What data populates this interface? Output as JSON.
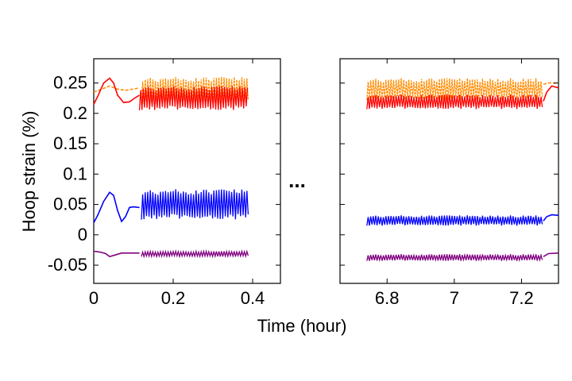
{
  "chart_data": {
    "type": "line",
    "title": "",
    "xlabel": "Time (hour)",
    "ylabel": "Hoop strain (%)",
    "ylim": [
      -0.08,
      0.29
    ],
    "ytick_labels": [
      "0.25",
      "0.2",
      "0.15",
      "0.1",
      "0.05",
      "0",
      "-0.05"
    ],
    "ytick_values": [
      0.25,
      0.2,
      0.15,
      0.1,
      0.05,
      0,
      -0.05
    ],
    "axis_break_symbol": "...",
    "panels": [
      {
        "name": "left",
        "xlim": [
          0,
          0.47
        ],
        "xtick_values": [
          0,
          0.2,
          0.4
        ],
        "xtick_labels": [
          "0",
          "0.2",
          "0.4"
        ]
      },
      {
        "name": "right",
        "xlim": [
          6.66,
          7.31
        ],
        "xtick_values": [
          6.8,
          7.0,
          7.2
        ],
        "xtick_labels": [
          "6.8",
          "7",
          "7.2"
        ]
      }
    ],
    "series": [
      {
        "name": "orange",
        "color": "#ff8c00",
        "style": "dashed",
        "startup": {
          "x": [
            0,
            0.02,
            0.04,
            0.06,
            0.08,
            0.1,
            0.115
          ],
          "y": [
            0.235,
            0.24,
            0.245,
            0.24,
            0.238,
            0.24,
            0.242
          ]
        },
        "osc_left": {
          "x_start": 0.12,
          "x_end": 0.39,
          "low": 0.215,
          "high": 0.26
        },
        "osc_right": {
          "x_start": 6.74,
          "x_end": 7.265,
          "low": 0.222,
          "high": 0.258
        },
        "tail": {
          "x": [
            7.265,
            7.28,
            7.31
          ],
          "y": [
            0.248,
            0.25,
            0.25
          ]
        }
      },
      {
        "name": "red",
        "color": "#ff0000",
        "style": "solid",
        "startup": {
          "x": [
            0,
            0.01,
            0.025,
            0.04,
            0.05,
            0.06,
            0.075,
            0.09,
            0.105,
            0.115
          ],
          "y": [
            0.215,
            0.228,
            0.25,
            0.258,
            0.25,
            0.23,
            0.218,
            0.219,
            0.226,
            0.23
          ]
        },
        "osc_left": {
          "x_start": 0.115,
          "x_end": 0.39,
          "low": 0.205,
          "high": 0.245
        },
        "osc_right": {
          "x_start": 6.74,
          "x_end": 7.265,
          "low": 0.207,
          "high": 0.231
        },
        "tail": {
          "x": [
            7.265,
            7.275,
            7.29,
            7.31
          ],
          "y": [
            0.22,
            0.235,
            0.245,
            0.242
          ]
        }
      },
      {
        "name": "blue",
        "color": "#0000ff",
        "style": "solid",
        "startup": {
          "x": [
            0,
            0.01,
            0.025,
            0.04,
            0.05,
            0.06,
            0.07,
            0.08,
            0.09,
            0.1,
            0.115
          ],
          "y": [
            0.02,
            0.032,
            0.055,
            0.07,
            0.065,
            0.04,
            0.022,
            0.03,
            0.045,
            0.046,
            0.045
          ]
        },
        "osc_left": {
          "x_start": 0.12,
          "x_end": 0.39,
          "low": 0.025,
          "high": 0.075
        },
        "osc_right": {
          "x_start": 6.74,
          "x_end": 7.265,
          "low": 0.015,
          "high": 0.032
        },
        "tail": {
          "x": [
            7.265,
            7.275,
            7.29,
            7.31
          ],
          "y": [
            0.023,
            0.03,
            0.033,
            0.032
          ]
        }
      },
      {
        "name": "purple",
        "color": "#800080",
        "style": "solid",
        "startup": {
          "x": [
            0,
            0.01,
            0.02,
            0.03,
            0.04,
            0.05,
            0.07,
            0.09,
            0.115
          ],
          "y": [
            -0.027,
            -0.028,
            -0.029,
            -0.031,
            -0.036,
            -0.034,
            -0.03,
            -0.03,
            -0.03
          ]
        },
        "osc_left": {
          "x_start": 0.12,
          "x_end": 0.39,
          "low": -0.036,
          "high": -0.027
        },
        "osc_right": {
          "x_start": 6.74,
          "x_end": 7.265,
          "low": -0.043,
          "high": -0.032
        },
        "tail": {
          "x": [
            7.265,
            7.28,
            7.31
          ],
          "y": [
            -0.036,
            -0.031,
            -0.03
          ]
        }
      }
    ]
  }
}
